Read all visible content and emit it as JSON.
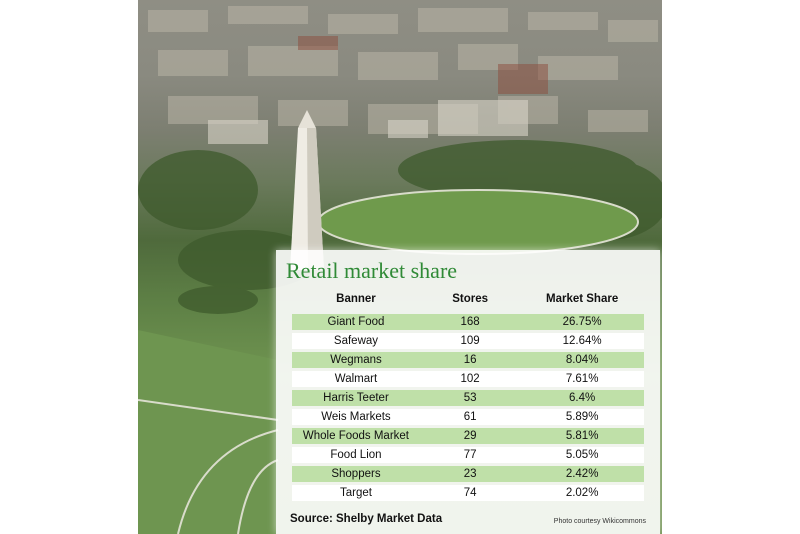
{
  "chart_data": {
    "type": "table",
    "title": "Retail market share",
    "columns": [
      "Banner",
      "Stores",
      "Market Share"
    ],
    "rows": [
      {
        "banner": "Giant Food",
        "stores": "168",
        "share": "26.75%"
      },
      {
        "banner": "Safeway",
        "stores": "109",
        "share": "12.64%"
      },
      {
        "banner": "Wegmans",
        "stores": "16",
        "share": "8.04%"
      },
      {
        "banner": "Walmart",
        "stores": "102",
        "share": "7.61%"
      },
      {
        "banner": "Harris Teeter",
        "stores": "53",
        "share": "6.4%"
      },
      {
        "banner": "Weis Markets",
        "stores": "61",
        "share": "5.89%"
      },
      {
        "banner": "Whole Foods Market",
        "stores": "29",
        "share": "5.81%"
      },
      {
        "banner": "Food Lion",
        "stores": "77",
        "share": "5.05%"
      },
      {
        "banner": "Shoppers",
        "stores": "23",
        "share": "2.42%"
      },
      {
        "banner": "Target",
        "stores": "74",
        "share": "2.02%"
      }
    ],
    "source": "Source: Shelby Market Data",
    "credit": "Photo courtesy Wikicommons",
    "colors": {
      "title": "#2f8a36",
      "row_shade": "#bfe0a8"
    }
  }
}
